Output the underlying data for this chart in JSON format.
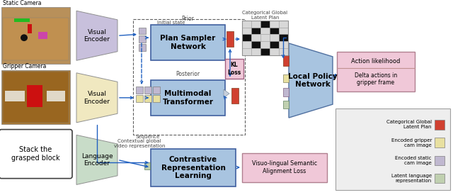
{
  "fig_width": 6.4,
  "fig_height": 2.75,
  "dpi": 100,
  "colors": {
    "purple_encoder": "#C8C0DC",
    "yellow_encoder": "#F0E8C0",
    "green_encoder": "#C8DCC8",
    "blue_box": "#A8C4E0",
    "pink_box": "#F0C8D8",
    "red_token": "#D04030",
    "yellow_token": "#E8E0A0",
    "purple_token": "#C0B8D0",
    "green_token": "#C0D0B0",
    "white": "#FFFFFF",
    "black": "#000000",
    "arrow_blue": "#2060C0",
    "legend_bg": "#EEEEEE",
    "kl_box": "#F0C8D8",
    "bg": "#FFFFFF"
  },
  "text": {
    "static_camera": "Static Camera",
    "gripper_camera": "Gripper Camera",
    "visual_encoder1": "Visual\nEncoder",
    "visual_encoder2": "Visual\nEncoder",
    "language_encoder": "Language\nEncoder",
    "plan_sampler": "Plan Sampler\nNetwork",
    "multimodal": "Multimodal\nTransformer",
    "contrastive": "Contrastive\nRepresentation\nLearning",
    "local_policy": "Local Policy\nNetwork",
    "action_likelihood": "Action likelihood",
    "delta_actions": "Delta actions in\ngripper frame",
    "kl_loss": "KL\nLoss",
    "prior": "Prior",
    "posterior": "Posterior",
    "initial_state": "Initial state",
    "sequence": "Sequence",
    "contextual": "Contextual global\nvideo representation",
    "cat_global": "Categorical Global\nLatent Plan",
    "visuo": "Visuo-lingual Semantic\nAlignment Loss",
    "stack": "Stack the\ngrasped block",
    "legend_cat": "Categorical Global\nLatent Plan",
    "legend_gripper": "Encoded gripper\ncam image",
    "legend_static": "Encoded static\ncam image",
    "legend_lang": "Latent language\nrepresentation"
  }
}
